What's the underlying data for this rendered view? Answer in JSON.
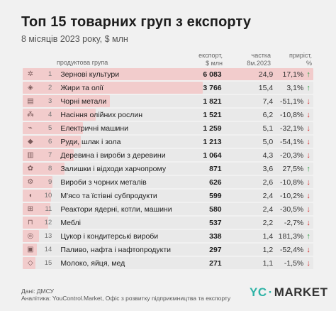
{
  "title": "Топ 15 товарних груп з експорту",
  "subtitle": "8 місяців 2023 року, $ млн",
  "headers": {
    "category": "продуктова група",
    "value_line1": "експорт,",
    "value_line2": "$ млн",
    "share_line1": "частка",
    "share_line2": "8м.2023",
    "growth_line1": "приріст,",
    "growth_line2": "%"
  },
  "colors": {
    "bar": "#f2cccc",
    "row_bg": "#e9e9e9",
    "up": "#2e9c3f",
    "down": "#d12b2b",
    "accent": "#2fb3a6"
  },
  "chart_data": {
    "type": "table",
    "columns": [
      "продуктова група",
      "експорт, $ млн",
      "частка 8м.2023",
      "приріст, %"
    ],
    "rows": [
      {
        "rank": "1",
        "icon": "wheat-icon",
        "category": "Зернові культури",
        "value_label": "6 083",
        "value": 6083,
        "share": "24,9",
        "growth": "17,1%",
        "direction": "up"
      },
      {
        "rank": "2",
        "icon": "oil-drop-icon",
        "category": "Жири та олії",
        "value_label": "3 766",
        "value": 3766,
        "share": "15,4",
        "growth": "3,1%",
        "direction": "up"
      },
      {
        "rank": "3",
        "icon": "metal-icon",
        "category": "Чорні метали",
        "value_label": "1 821",
        "value": 1821,
        "share": "7,4",
        "growth": "-51,1%",
        "direction": "down"
      },
      {
        "rank": "4",
        "icon": "seeds-icon",
        "category": "Насіння олійних рослин",
        "value_label": "1 521",
        "value": 1521,
        "share": "6,2",
        "growth": "-10,8%",
        "direction": "down"
      },
      {
        "rank": "5",
        "icon": "plug-icon",
        "category": "Електричні машини",
        "value_label": "1 259",
        "value": 1259,
        "share": "5,1",
        "growth": "-32,1%",
        "direction": "down"
      },
      {
        "rank": "6",
        "icon": "ore-icon",
        "category": "Руди, шлак і зола",
        "value_label": "1 213",
        "value": 1213,
        "share": "5,0",
        "growth": "-54,1%",
        "direction": "down"
      },
      {
        "rank": "7",
        "icon": "wood-icon",
        "category": "Деревина і вироби з деревини",
        "value_label": "1 064",
        "value": 1064,
        "share": "4,3",
        "growth": "-20,3%",
        "direction": "down"
      },
      {
        "rank": "8",
        "icon": "food-waste-icon",
        "category": "Залишки і відходи харчопрому",
        "value_label": "871",
        "value": 871,
        "share": "3,6",
        "growth": "27,5%",
        "direction": "up"
      },
      {
        "rank": "9",
        "icon": "gear-icon",
        "category": "Вироби з чорних металів",
        "value_label": "626",
        "value": 626,
        "share": "2,6",
        "growth": "-10,8%",
        "direction": "down"
      },
      {
        "rank": "10",
        "icon": "meat-icon",
        "category": "М'ясо та їстівні субпродукти",
        "value_label": "599",
        "value": 599,
        "share": "2,4",
        "growth": "-10,2%",
        "direction": "down"
      },
      {
        "rank": "11",
        "icon": "reactor-icon",
        "category": "Реактори ядерні, котли, машини",
        "value_label": "580",
        "value": 580,
        "share": "2,4",
        "growth": "-30,5%",
        "direction": "down"
      },
      {
        "rank": "12",
        "icon": "furniture-icon",
        "category": "Меблі",
        "value_label": "537",
        "value": 537,
        "share": "2,2",
        "growth": "-2,7%",
        "direction": "down"
      },
      {
        "rank": "13",
        "icon": "candy-icon",
        "category": "Цукор і кондитерські вироби",
        "value_label": "338",
        "value": 338,
        "share": "1,4",
        "growth": "181,3%",
        "direction": "up"
      },
      {
        "rank": "14",
        "icon": "fuel-icon",
        "category": "Паливо, нафта і нафтопродукти",
        "value_label": "297",
        "value": 297,
        "share": "1,2",
        "growth": "-52,4%",
        "direction": "down"
      },
      {
        "rank": "15",
        "icon": "milk-icon",
        "category": "Молоко, яйця, мед",
        "value_label": "271",
        "value": 271,
        "share": "1,1",
        "growth": "-1,5%",
        "direction": "down"
      }
    ]
  },
  "footer": {
    "source_line1": "Дані: ДМСУ",
    "source_line2": "Аналітика: YouControl.Market, Офіс з розвитку підприємництва та експорту",
    "logo_mark": "YC",
    "logo_dot": "·",
    "logo_text": "MARKET"
  }
}
